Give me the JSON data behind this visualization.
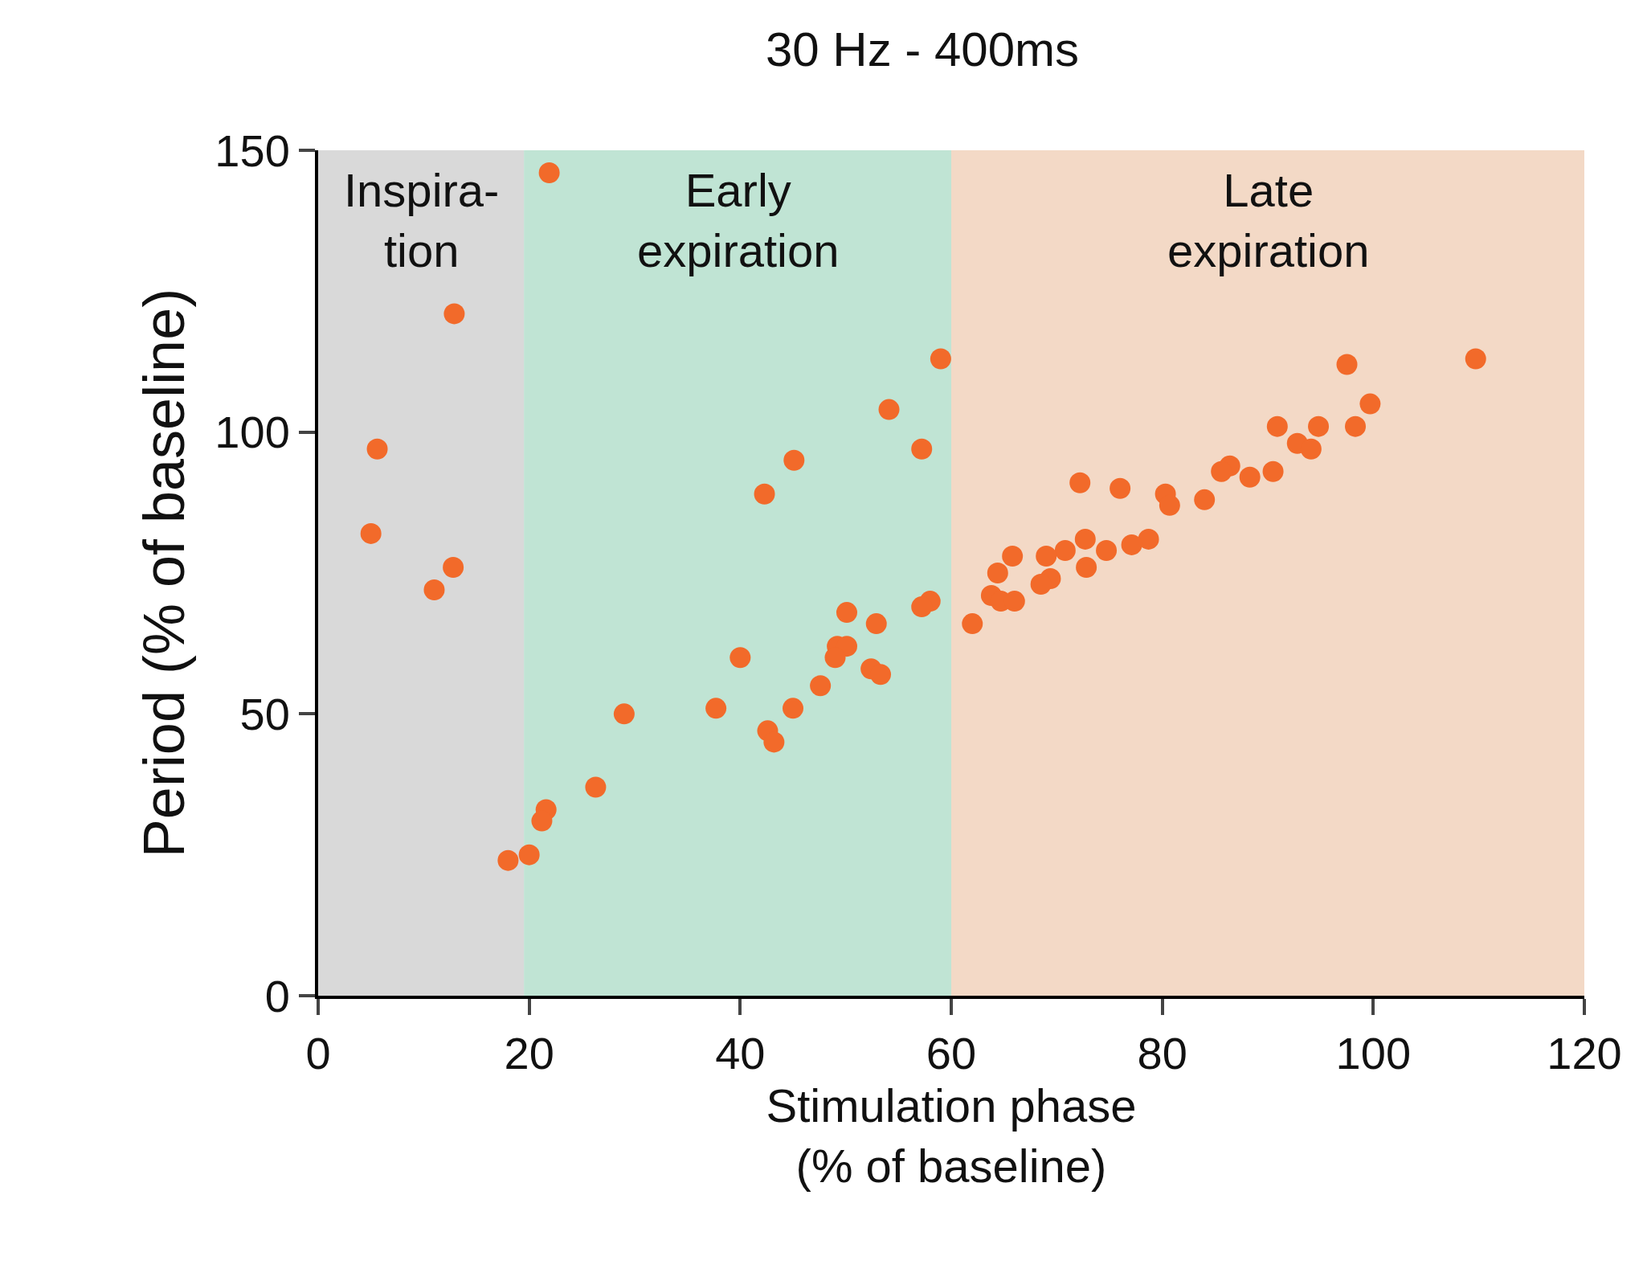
{
  "chart_data": {
    "type": "scatter",
    "title": "30 Hz - 400ms",
    "xlabel": "Stimulation phase\n(% of baseline)",
    "ylabel": "Period (% of baseline)",
    "x": [
      21.9,
      12.9,
      5.6,
      5.0,
      12.8,
      11.0,
      59.0,
      54.1,
      45.1,
      57.2,
      42.3,
      58.0,
      57.2,
      50.1,
      52.9,
      40.0,
      49.2,
      50.1,
      49.0,
      52.4,
      53.3,
      47.6,
      45.0,
      37.7,
      29.0,
      42.6,
      43.2,
      26.3,
      21.6,
      21.2,
      20.0,
      18.0,
      109.7,
      97.5,
      99.7,
      90.9,
      94.8,
      98.3,
      92.8,
      94.1,
      86.4,
      85.6,
      88.3,
      90.5,
      84.0,
      80.3,
      80.7,
      72.2,
      76.0,
      78.7,
      77.1,
      74.7,
      72.7,
      70.8,
      69.0,
      72.8,
      65.8,
      64.4,
      69.4,
      68.5,
      63.8,
      64.7,
      66.0,
      62.0
    ],
    "values": [
      146,
      121,
      97,
      82,
      76,
      72,
      113,
      104,
      95,
      97,
      89,
      70,
      69,
      68,
      66,
      60,
      62,
      62,
      60,
      58,
      57,
      55,
      51,
      51,
      50,
      47,
      45,
      37,
      33,
      31,
      25,
      24,
      113,
      112,
      105,
      101,
      101,
      101,
      98,
      97,
      94,
      93,
      92,
      93,
      88,
      89,
      87,
      91,
      90,
      81,
      80,
      79,
      81,
      79,
      78,
      76,
      78,
      75,
      74,
      73,
      71,
      70,
      70,
      66
    ],
    "color": "#f26a2a",
    "marker": "circle",
    "xlim": [
      0,
      120
    ],
    "xticks": [
      0,
      20,
      40,
      60,
      80,
      100,
      120
    ],
    "ylim": [
      0,
      150
    ],
    "yticks": [
      0,
      50,
      100,
      150
    ],
    "grid": false,
    "bands": [
      {
        "axis": "x",
        "from": 0,
        "to": 19.5,
        "label": "Inspira-\ntion",
        "color": "#d9d9d9"
      },
      {
        "axis": "x",
        "from": 19.5,
        "to": 60,
        "label": "Early\nexpiration",
        "color": "#c0e4d4"
      },
      {
        "axis": "x",
        "from": 60,
        "to": 120,
        "label": "Late\nexpiration",
        "color": "#f3d9c6"
      }
    ]
  }
}
